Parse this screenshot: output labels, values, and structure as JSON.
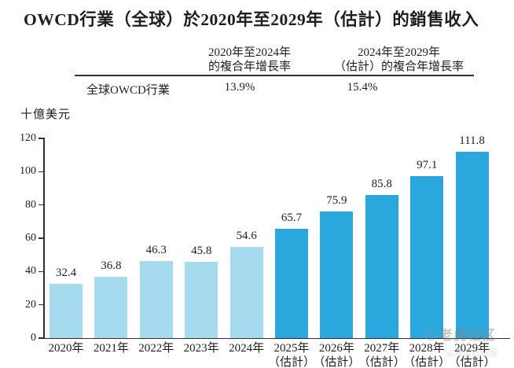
{
  "title": "OWCD行業（全球）於2020年至2029年（估計）的銷售收入",
  "cagr_table": {
    "col1_header_line1": "2020年至2024年",
    "col1_header_line2": "的複合年增長率",
    "col2_header_line1": "2024年至2029年",
    "col2_header_line2": "（估計）的複合年增長率",
    "row_label": "全球OWCD行業",
    "col1_value": "13.9%",
    "col2_value": "15.4%"
  },
  "chart_data": {
    "type": "bar",
    "title": "OWCD行業（全球）於2020年至2029年（估計）的銷售收入",
    "ylabel": "十億美元",
    "categories": [
      "2020年",
      "2021年",
      "2022年",
      "2023年",
      "2024年",
      "2025年",
      "2026年",
      "2027年",
      "2028年",
      "2029年"
    ],
    "values": [
      32.4,
      36.8,
      46.3,
      45.8,
      54.6,
      65.7,
      75.9,
      85.8,
      97.1,
      111.8
    ],
    "estimate_note": "（估計）",
    "estimate_start_index": 5,
    "ylim": [
      0,
      120
    ],
    "ytick_step": 20,
    "grid": false,
    "legend": false,
    "colors": {
      "actual": "#A6DAEF",
      "estimate": "#2AA7DC"
    }
  },
  "watermark": {
    "main": "老虎社区",
    "sub": "@港股打新股",
    "icon": "tiger-badge-icon"
  }
}
